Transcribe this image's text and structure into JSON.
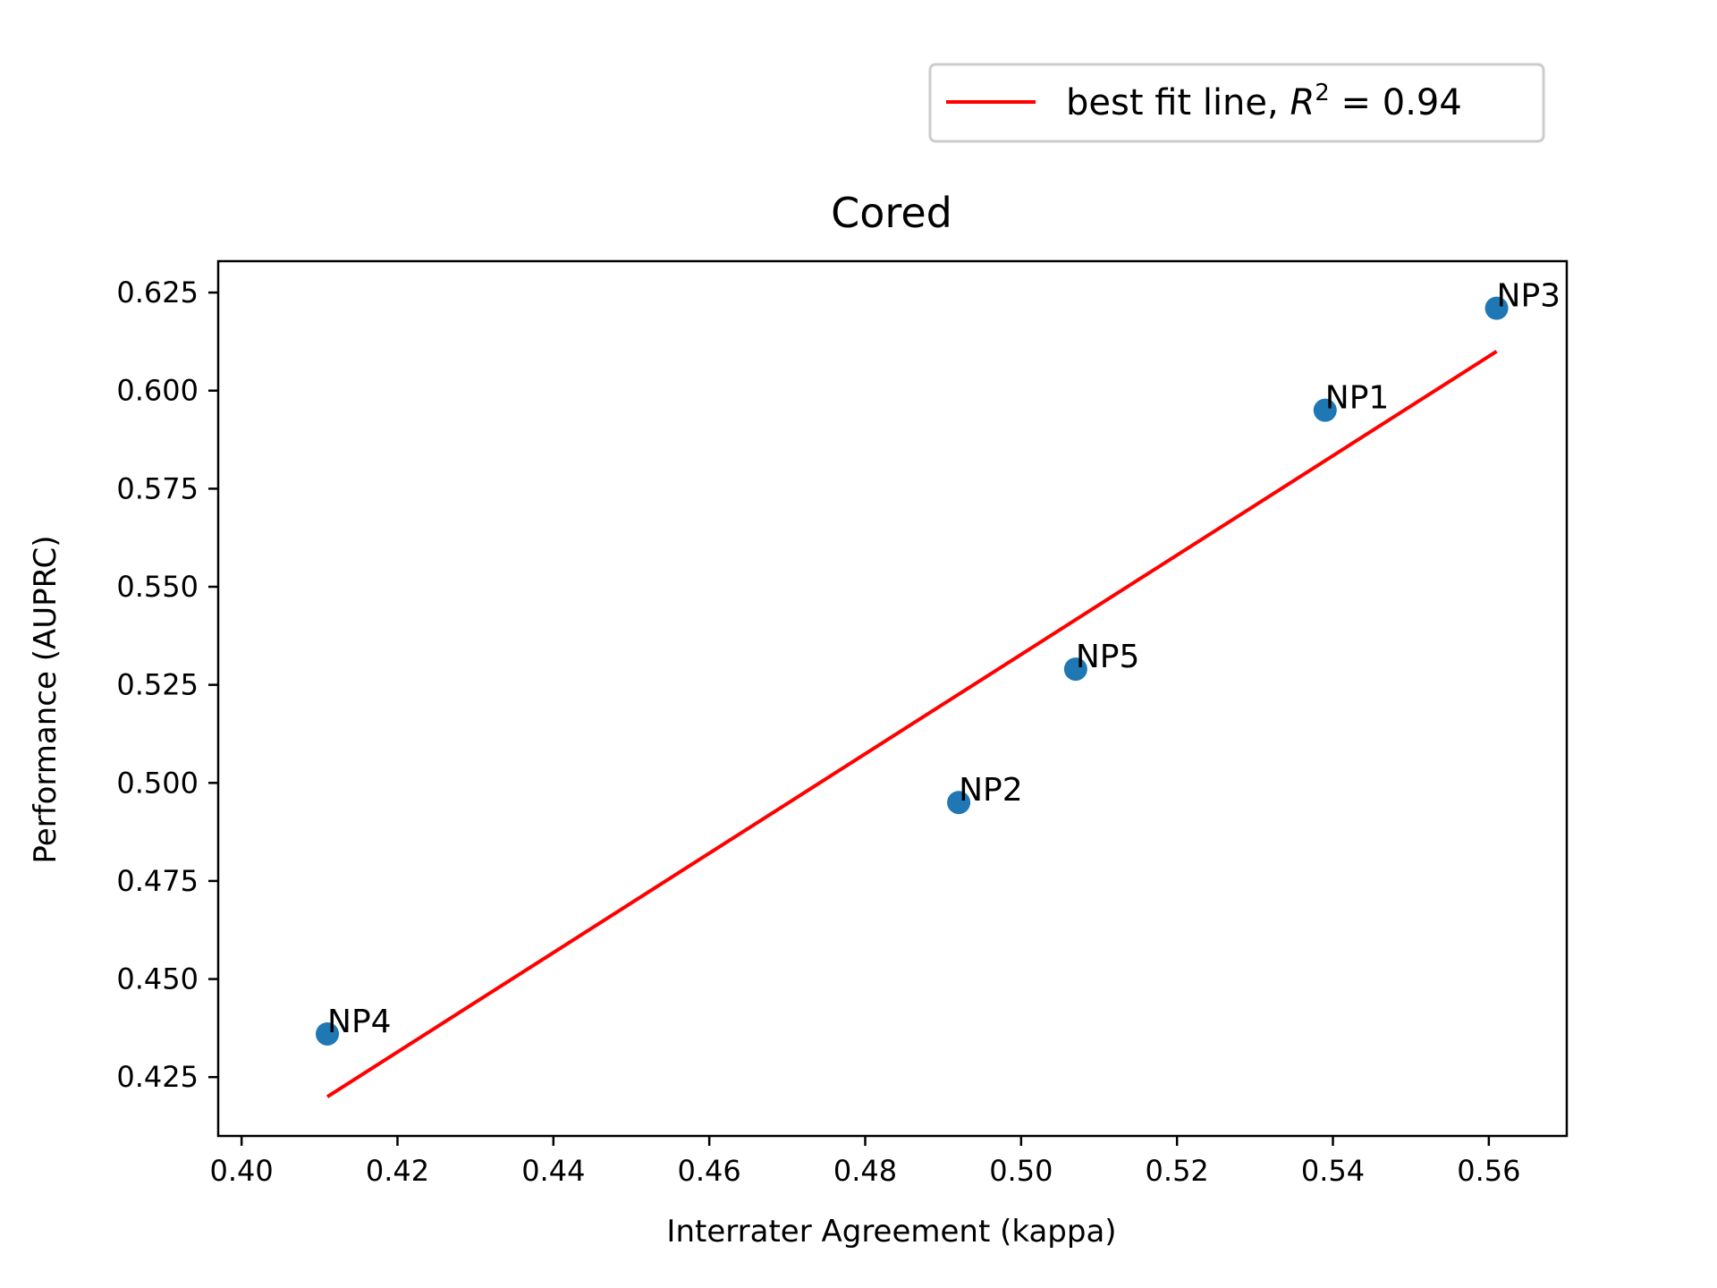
{
  "chart_data": {
    "type": "scatter",
    "title": "Cored",
    "xlabel": "Interrater Agreement (kappa)",
    "ylabel": "Performance (AUPRC)",
    "xlim": [
      0.397,
      0.57
    ],
    "ylim": [
      0.41,
      0.633
    ],
    "xticks": [
      0.4,
      0.42,
      0.44,
      0.46,
      0.48,
      0.5,
      0.52,
      0.54,
      0.56
    ],
    "xtick_labels": [
      "0.40",
      "0.42",
      "0.44",
      "0.46",
      "0.48",
      "0.50",
      "0.52",
      "0.54",
      "0.56"
    ],
    "yticks": [
      0.425,
      0.45,
      0.475,
      0.5,
      0.525,
      0.55,
      0.575,
      0.6,
      0.625
    ],
    "ytick_labels": [
      "0.425",
      "0.450",
      "0.475",
      "0.500",
      "0.525",
      "0.550",
      "0.575",
      "0.600",
      "0.625"
    ],
    "points": [
      {
        "label": "NP1",
        "x": 0.539,
        "y": 0.595
      },
      {
        "label": "NP2",
        "x": 0.492,
        "y": 0.495
      },
      {
        "label": "NP3",
        "x": 0.561,
        "y": 0.621
      },
      {
        "label": "NP4",
        "x": 0.411,
        "y": 0.436
      },
      {
        "label": "NP5",
        "x": 0.507,
        "y": 0.529
      }
    ],
    "point_color": "#1f77b4",
    "fit_line": {
      "x": [
        0.411,
        0.561
      ],
      "y": [
        0.42,
        0.61
      ],
      "color": "#ff0000"
    },
    "legend": {
      "entries": [
        {
          "text_prefix": "best fit line, ",
          "text_italic": "R",
          "text_sup": "2",
          "text_suffix": " = 0.94",
          "color": "#ff0000"
        }
      ],
      "placement": "upper-right-outside"
    },
    "grid": false
  }
}
